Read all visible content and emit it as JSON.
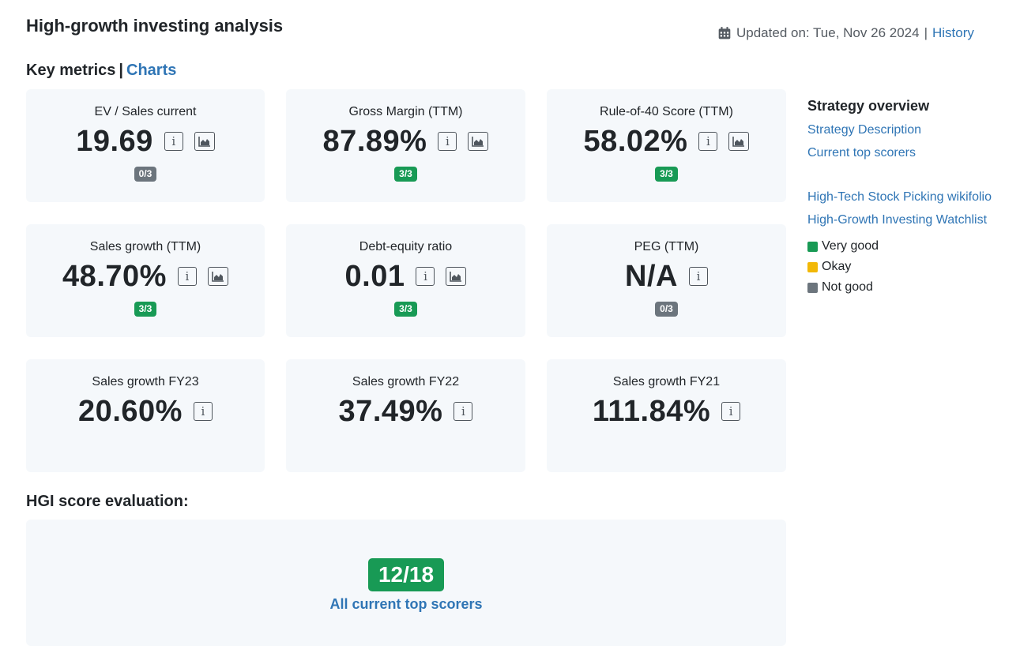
{
  "header": {
    "title": "High-growth investing analysis",
    "updated_label": "Updated on: Tue, Nov 26 2024",
    "separator": "|",
    "history_link": "History"
  },
  "key_metrics": {
    "title": "Key metrics",
    "separator": "|",
    "charts_link": "Charts",
    "cards": [
      {
        "label": "EV / Sales current",
        "value": "19.69",
        "has_chart": true,
        "badge": "0/3",
        "badge_color": "gray"
      },
      {
        "label": "Gross Margin (TTM)",
        "value": "87.89%",
        "has_chart": true,
        "badge": "3/3",
        "badge_color": "green"
      },
      {
        "label": "Rule-of-40 Score (TTM)",
        "value": "58.02%",
        "has_chart": true,
        "badge": "3/3",
        "badge_color": "green"
      },
      {
        "label": "Sales growth (TTM)",
        "value": "48.70%",
        "has_chart": true,
        "badge": "3/3",
        "badge_color": "green"
      },
      {
        "label": "Debt-equity ratio",
        "value": "0.01",
        "has_chart": true,
        "badge": "3/3",
        "badge_color": "green"
      },
      {
        "label": "PEG (TTM)",
        "value": "N/A",
        "has_chart": false,
        "badge": "0/3",
        "badge_color": "gray"
      },
      {
        "label": "Sales growth FY23",
        "value": "20.60%",
        "has_chart": false,
        "badge": "",
        "badge_color": ""
      },
      {
        "label": "Sales growth FY22",
        "value": "37.49%",
        "has_chart": false,
        "badge": "",
        "badge_color": ""
      },
      {
        "label": "Sales growth FY21",
        "value": "111.84%",
        "has_chart": false,
        "badge": "",
        "badge_color": ""
      }
    ],
    "info_glyph": "i"
  },
  "hgi": {
    "title": "HGI score evaluation:",
    "score": "12/18",
    "link": "All current top scorers"
  },
  "sidebar": {
    "title": "Strategy overview",
    "links_top": [
      "Strategy Description",
      "Current top scorers"
    ],
    "links_bottom": [
      "High-Tech Stock Picking wikifolio",
      "High-Growth Investing Watchlist"
    ],
    "legend": [
      {
        "label": "Very good",
        "color": "#189a55"
      },
      {
        "label": "Okay",
        "color": "#f2b807"
      },
      {
        "label": "Not good",
        "color": "#6c757d"
      }
    ]
  },
  "colors": {
    "green": "#189a55",
    "gray": "#6c757d",
    "link": "#2f75b5",
    "card_bg": "#f5f8fb"
  },
  "icons": {
    "calendar": "calendar-icon",
    "info": "info-icon",
    "chart": "area-chart-icon"
  }
}
